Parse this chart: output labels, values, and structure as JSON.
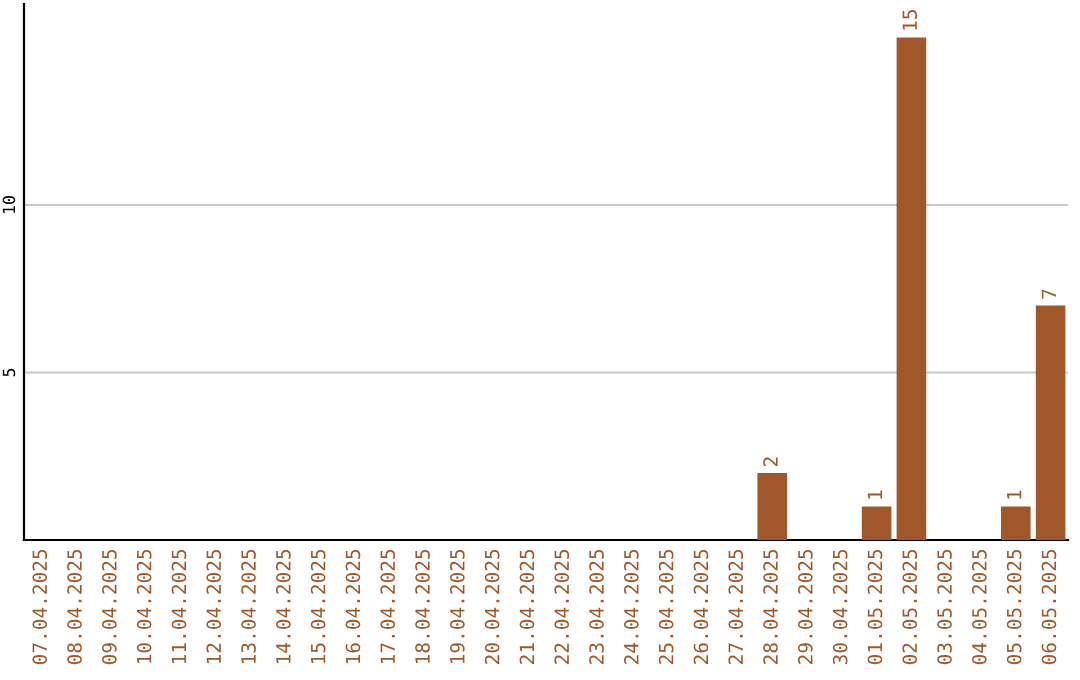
{
  "chart_data": {
    "type": "bar",
    "categories": [
      "07.04.2025",
      "08.04.2025",
      "09.04.2025",
      "10.04.2025",
      "11.04.2025",
      "12.04.2025",
      "13.04.2025",
      "14.04.2025",
      "15.04.2025",
      "16.04.2025",
      "17.04.2025",
      "18.04.2025",
      "19.04.2025",
      "20.04.2025",
      "21.04.2025",
      "22.04.2025",
      "23.04.2025",
      "24.04.2025",
      "25.04.2025",
      "26.04.2025",
      "27.04.2025",
      "28.04.2025",
      "29.04.2025",
      "30.04.2025",
      "01.05.2025",
      "02.05.2025",
      "03.05.2025",
      "04.05.2025",
      "05.05.2025",
      "06.05.2025"
    ],
    "values": [
      0,
      0,
      0,
      0,
      0,
      0,
      0,
      0,
      0,
      0,
      0,
      0,
      0,
      0,
      0,
      0,
      0,
      0,
      0,
      0,
      0,
      2,
      0,
      0,
      1,
      15,
      0,
      0,
      1,
      7
    ],
    "value_labels": [
      null,
      null,
      null,
      null,
      null,
      null,
      null,
      null,
      null,
      null,
      null,
      null,
      null,
      null,
      null,
      null,
      null,
      null,
      null,
      null,
      null,
      "2",
      null,
      null,
      "1",
      "15",
      null,
      null,
      "1",
      "7"
    ],
    "color": "#a0572a",
    "ylim": [
      0,
      16
    ],
    "yticks": [
      5,
      10
    ],
    "grid": "y"
  }
}
